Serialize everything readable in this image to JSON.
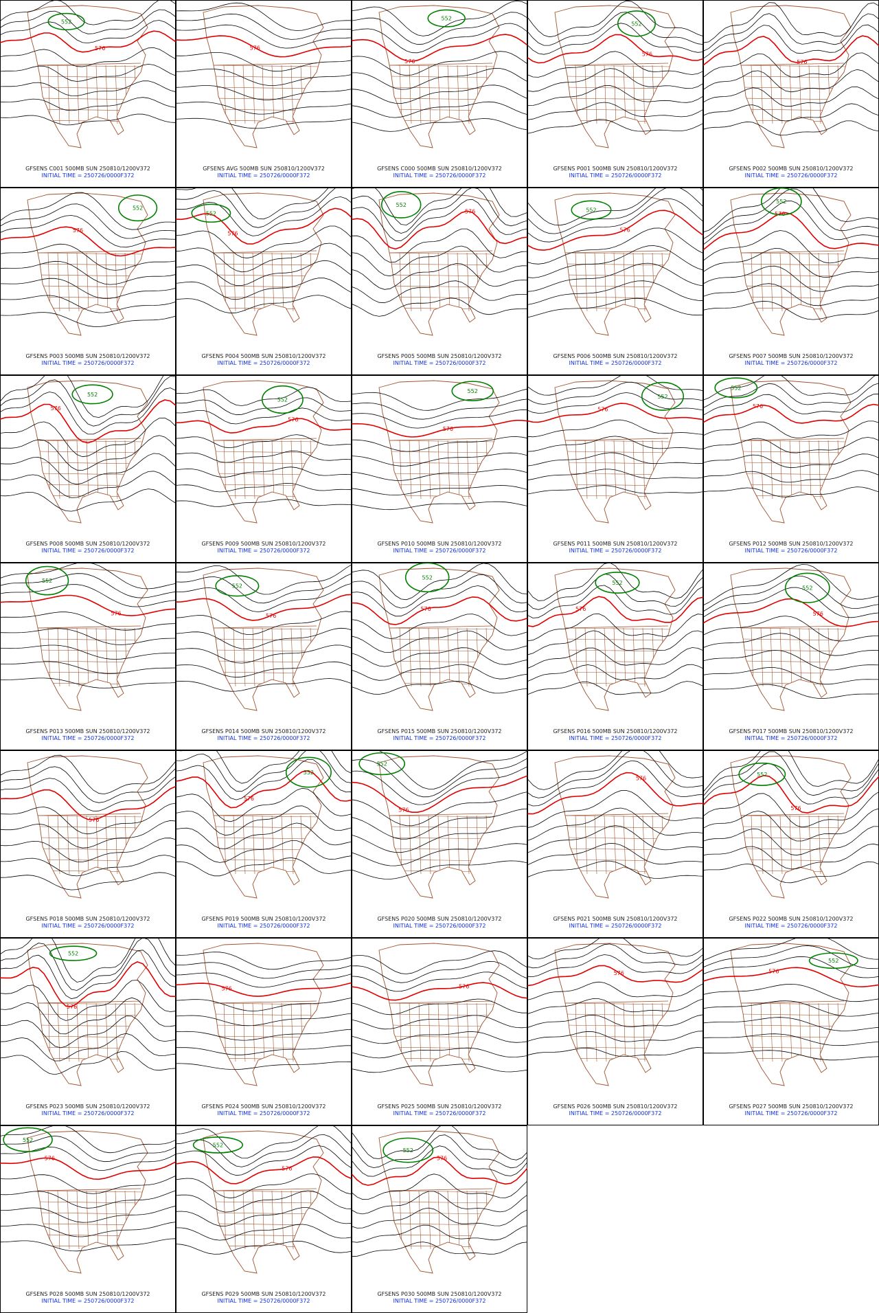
{
  "panels": [
    {
      "title": "GFSENS C001 500MB SUN 250810/1200V372",
      "initial_time": "INITIAL TIME = 250726/0000F372",
      "labels": [
        "576",
        "552"
      ]
    },
    {
      "title": "GFSENS AVG 500MB SUN 250810/1200V372",
      "initial_time": "INITIAL TIME = 250726/0000F372",
      "labels": [
        "576"
      ]
    },
    {
      "title": "GFSENS C000 500MB SUN 250810/1200V372",
      "initial_time": "INITIAL TIME = 250726/0000F372",
      "labels": [
        "576",
        "552"
      ]
    },
    {
      "title": "GFSENS P001 500MB SUN 250810/1200V372",
      "initial_time": "INITIAL TIME = 250726/0000F372",
      "labels": [
        "576",
        "552"
      ]
    },
    {
      "title": "GFSENS P002 500MB SUN 250810/1200V372",
      "initial_time": "INITIAL TIME = 250726/0000F372",
      "labels": [
        "576"
      ]
    },
    {
      "title": "GFSENS P003 500MB SUN 250810/1200V372",
      "initial_time": "INITIAL TIME = 250726/0000F372",
      "labels": [
        "576",
        "552"
      ]
    },
    {
      "title": "GFSENS P004 500MB SUN 250810/1200V372",
      "initial_time": "INITIAL TIME = 250726/0000F372",
      "labels": [
        "576",
        "552"
      ]
    },
    {
      "title": "GFSENS P005 500MB SUN 250810/1200V372",
      "initial_time": "INITIAL TIME = 250726/0000F372",
      "labels": [
        "576",
        "552"
      ]
    },
    {
      "title": "GFSENS P006 500MB SUN 250810/1200V372",
      "initial_time": "INITIAL TIME = 250726/0000F372",
      "labels": [
        "576",
        "552"
      ]
    },
    {
      "title": "GFSENS P007 500MB SUN 250810/1200V372",
      "initial_time": "INITIAL TIME = 250726/0000F372",
      "labels": [
        "576",
        "552"
      ]
    },
    {
      "title": "GFSENS P008 500MB SUN 250810/1200V372",
      "initial_time": "INITIAL TIME = 250726/0000F372",
      "labels": [
        "576",
        "552"
      ]
    },
    {
      "title": "GFSENS P009 500MB SUN 250810/1200V372",
      "initial_time": "INITIAL TIME = 250726/0000F372",
      "labels": [
        "576",
        "552"
      ]
    },
    {
      "title": "GFSENS P010 500MB SUN 250810/1200V372",
      "initial_time": "INITIAL TIME = 250726/0000F372",
      "labels": [
        "576",
        "552"
      ]
    },
    {
      "title": "GFSENS P011 500MB SUN 250810/1200V372",
      "initial_time": "INITIAL TIME = 250726/0000F372",
      "labels": [
        "576",
        "552"
      ]
    },
    {
      "title": "GFSENS P012 500MB SUN 250810/1200V372",
      "initial_time": "INITIAL TIME = 250726/0000F372",
      "labels": [
        "576",
        "552"
      ]
    },
    {
      "title": "GFSENS P013 500MB SUN 250810/1200V372",
      "initial_time": "INITIAL TIME = 250726/0000F372",
      "labels": [
        "576",
        "552"
      ]
    },
    {
      "title": "GFSENS P014 500MB SUN 250810/1200V372",
      "initial_time": "INITIAL TIME = 250726/0000F372",
      "labels": [
        "576",
        "552"
      ]
    },
    {
      "title": "GFSENS P015 500MB SUN 250810/1200V372",
      "initial_time": "INITIAL TIME = 250726/0000F372",
      "labels": [
        "576",
        "552"
      ]
    },
    {
      "title": "GFSENS P016 500MB SUN 250810/1200V372",
      "initial_time": "INITIAL TIME = 250726/0000F372",
      "labels": [
        "576",
        "552"
      ]
    },
    {
      "title": "GFSENS P017 500MB SUN 250810/1200V372",
      "initial_time": "INITIAL TIME = 250726/0000F372",
      "labels": [
        "576",
        "552"
      ]
    },
    {
      "title": "GFSENS P018 500MB SUN 250810/1200V372",
      "initial_time": "INITIAL TIME = 250726/0000F372",
      "labels": [
        "576"
      ]
    },
    {
      "title": "GFSENS P019 500MB SUN 250810/1200V372",
      "initial_time": "INITIAL TIME = 250726/0000F372",
      "labels": [
        "576",
        "552"
      ]
    },
    {
      "title": "GFSENS P020 500MB SUN 250810/1200V372",
      "initial_time": "INITIAL TIME = 250726/0000F372",
      "labels": [
        "576",
        "552"
      ]
    },
    {
      "title": "GFSENS P021 500MB SUN 250810/1200V372",
      "initial_time": "INITIAL TIME = 250726/0000F372",
      "labels": [
        "576"
      ]
    },
    {
      "title": "GFSENS P022 500MB SUN 250810/1200V372",
      "initial_time": "INITIAL TIME = 250726/0000F372",
      "labels": [
        "576",
        "552"
      ]
    },
    {
      "title": "GFSENS P023 500MB SUN 250810/1200V372",
      "initial_time": "INITIAL TIME = 250726/0000F372",
      "labels": [
        "576",
        "552"
      ]
    },
    {
      "title": "GFSENS P024 500MB SUN 250810/1200V372",
      "initial_time": "INITIAL TIME = 250726/0000F372",
      "labels": [
        "576"
      ]
    },
    {
      "title": "GFSENS P025 500MB SUN 250810/1200V372",
      "initial_time": "INITIAL TIME = 250726/0000F372",
      "labels": [
        "576"
      ]
    },
    {
      "title": "GFSENS P026 500MB SUN 250810/1200V372",
      "initial_time": "INITIAL TIME = 250726/0000F372",
      "labels": [
        "576"
      ]
    },
    {
      "title": "GFSENS P027 500MB SUN 250810/1200V372",
      "initial_time": "INITIAL TIME = 250726/0000F372",
      "labels": [
        "576",
        "552"
      ]
    },
    {
      "title": "GFSENS P028 500MB SUN 250810/1200V372",
      "initial_time": "INITIAL TIME = 250726/0000F372",
      "labels": [
        "576",
        "552"
      ]
    },
    {
      "title": "GFSENS P029 500MB SUN 250810/1200V372",
      "initial_time": "INITIAL TIME = 250726/0000F372",
      "labels": [
        "576",
        "552"
      ]
    },
    {
      "title": "GFSENS P030 500MB SUN 250810/1200V372",
      "initial_time": "INITIAL TIME = 250726/0000F372",
      "labels": [
        "576",
        "552"
      ]
    }
  ]
}
